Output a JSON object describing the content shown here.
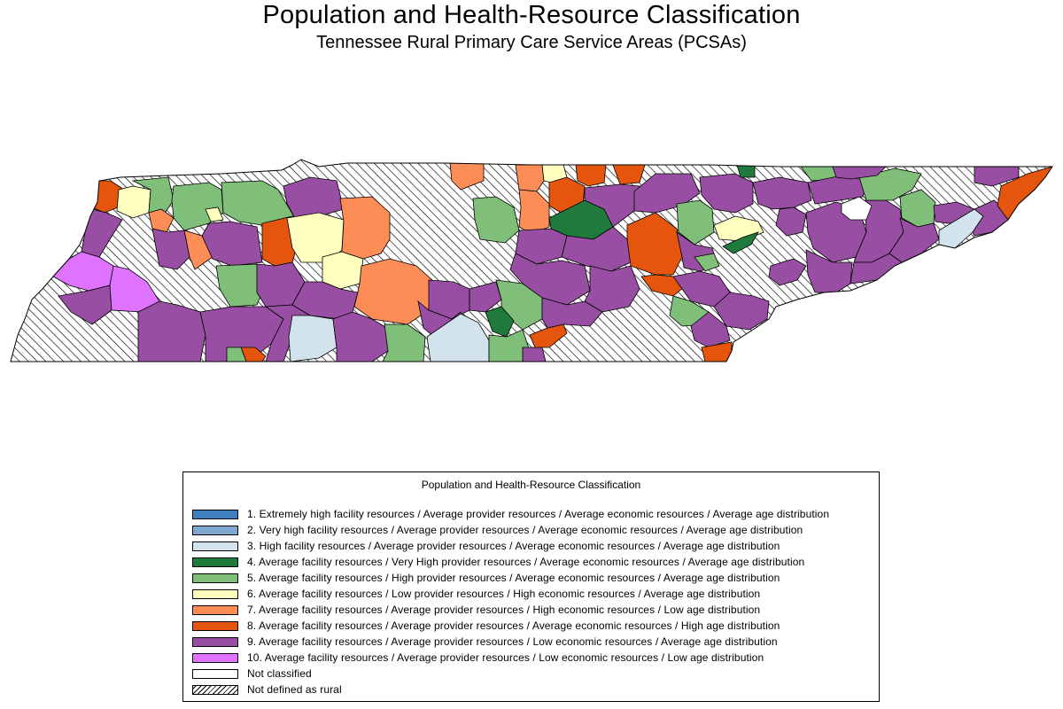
{
  "title": "Population and Health-Resource Classification",
  "subtitle": "Tennessee Rural Primary Care Service Areas (PCSAs)",
  "legend": {
    "title": "Population and Health-Resource Classification",
    "items": [
      {
        "label": "1. Extremely high facility resources / Average provider resources / Average economic resources / Average age distribution",
        "color": "#3f7fbf"
      },
      {
        "label": "2. Very high facility resources / Average provider resources / Average economic resources / Average age distribution",
        "color": "#7ea6d1"
      },
      {
        "label": "3. High facility resources / Average provider resources / Average economic resources / Average age distribution",
        "color": "#d3e3ee"
      },
      {
        "label": "4. Average facility resources / Very High provider resources / Average economic resources / Average age distribution",
        "color": "#1f7a3c"
      },
      {
        "label": "5. Average facility resources / High provider resources / Average economic resources / Average age distribution",
        "color": "#7fbf7a"
      },
      {
        "label": "6. Average facility resources / Low provider resources / High economic resources / Average age distribution",
        "color": "#ffffbf"
      },
      {
        "label": "7. Average facility resources / Average provider resources / High economic resources / Low age distribution",
        "color": "#fd8d57"
      },
      {
        "label": "8. Average facility resources / Average provider resources / Average economic resources / High age distribution",
        "color": "#e6550d"
      },
      {
        "label": "9. Average facility resources / Average provider resources / Low economic resources / Average age distribution",
        "color": "#984ea3"
      },
      {
        "label": "10. Average facility resources / Average provider resources / Low economic resources / Low age distribution",
        "color": "#df73ff"
      },
      {
        "label": "Not classified",
        "color": "#ffffff"
      },
      {
        "label": "Not defined as rural",
        "color": "hatch"
      }
    ]
  }
}
